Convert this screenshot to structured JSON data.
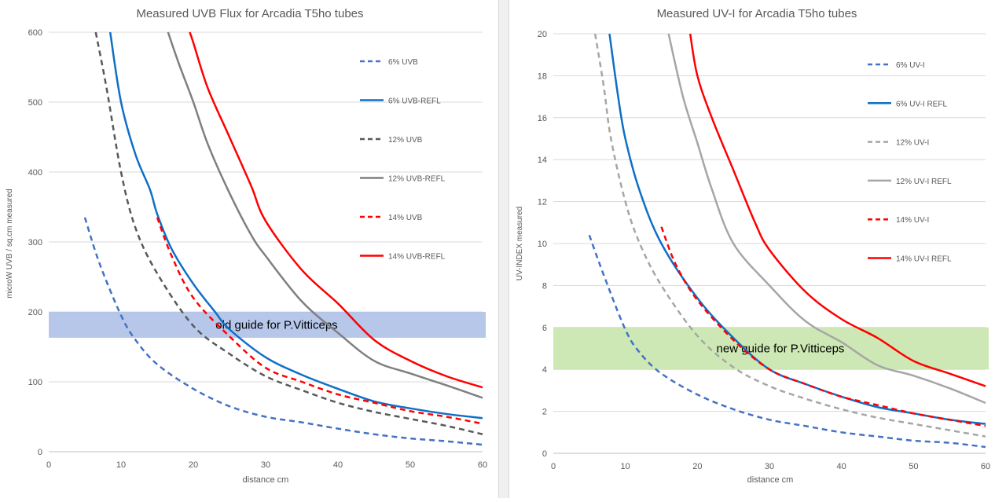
{
  "chart_data": [
    {
      "type": "line",
      "title": "Measured UVB Flux for Arcadia T5ho tubes",
      "xlabel": "distance cm",
      "ylabel": "microW UVB / sq.cm measured",
      "xlim": [
        0,
        60
      ],
      "ylim": [
        0,
        600
      ],
      "xticks": [
        0,
        10,
        20,
        30,
        40,
        50,
        60
      ],
      "yticks": [
        0,
        100,
        200,
        300,
        400,
        500,
        600
      ],
      "grid": "horizontal",
      "legend": "right",
      "band": {
        "label": "old guide for P.Vitticeps",
        "y0": 163,
        "y1": 200,
        "color": "#a9bde6"
      },
      "series": [
        {
          "name": "6% UVB",
          "color": "#4472c4",
          "dash": true,
          "points": [
            [
              5,
              335
            ],
            [
              7,
              270
            ],
            [
              10,
              195
            ],
            [
              12,
              160
            ],
            [
              15,
              125
            ],
            [
              20,
              90
            ],
            [
              25,
              65
            ],
            [
              30,
              50
            ],
            [
              35,
              42
            ],
            [
              40,
              33
            ],
            [
              45,
              25
            ],
            [
              50,
              19
            ],
            [
              55,
              15
            ],
            [
              60,
              10
            ]
          ]
        },
        {
          "name": "6% UVB-REFL",
          "color": "#0f6fc6",
          "dash": false,
          "points": [
            [
              8.5,
              600
            ],
            [
              10,
              500
            ],
            [
              12,
              425
            ],
            [
              14,
              375
            ],
            [
              15,
              340
            ],
            [
              17,
              290
            ],
            [
              20,
              240
            ],
            [
              23,
              200
            ],
            [
              25,
              175
            ],
            [
              30,
              135
            ],
            [
              35,
              110
            ],
            [
              40,
              90
            ],
            [
              45,
              72
            ],
            [
              50,
              62
            ],
            [
              55,
              54
            ],
            [
              60,
              48
            ]
          ]
        },
        {
          "name": "12% UVB",
          "color": "#595959",
          "dash": true,
          "points": [
            [
              6.5,
              600
            ],
            [
              8,
              520
            ],
            [
              10,
              400
            ],
            [
              12,
              320
            ],
            [
              15,
              255
            ],
            [
              20,
              180
            ],
            [
              25,
              140
            ],
            [
              30,
              108
            ],
            [
              35,
              88
            ],
            [
              40,
              70
            ],
            [
              45,
              57
            ],
            [
              50,
              47
            ],
            [
              55,
              37
            ],
            [
              60,
              25
            ]
          ]
        },
        {
          "name": "12% UVB-REFL",
          "color": "#7f7f7f",
          "dash": false,
          "points": [
            [
              16.5,
              600
            ],
            [
              18,
              555
            ],
            [
              20,
              500
            ],
            [
              22,
              440
            ],
            [
              25,
              370
            ],
            [
              28,
              310
            ],
            [
              30,
              280
            ],
            [
              35,
              215
            ],
            [
              40,
              170
            ],
            [
              45,
              130
            ],
            [
              50,
              112
            ],
            [
              55,
              95
            ],
            [
              60,
              77
            ]
          ]
        },
        {
          "name": "14% UVB",
          "color": "#ff0000",
          "dash": true,
          "points": [
            [
              15,
              335
            ],
            [
              17,
              280
            ],
            [
              20,
              220
            ],
            [
              25,
              165
            ],
            [
              30,
              120
            ],
            [
              35,
              100
            ],
            [
              40,
              82
            ],
            [
              45,
              70
            ],
            [
              50,
              58
            ],
            [
              55,
              50
            ],
            [
              60,
              40
            ]
          ]
        },
        {
          "name": "14% UVB-REFL",
          "color": "#ff0000",
          "dash": false,
          "points": [
            [
              19.5,
              600
            ],
            [
              20,
              585
            ],
            [
              22,
              520
            ],
            [
              25,
              450
            ],
            [
              28,
              380
            ],
            [
              30,
              330
            ],
            [
              35,
              260
            ],
            [
              40,
              212
            ],
            [
              45,
              160
            ],
            [
              50,
              130
            ],
            [
              55,
              108
            ],
            [
              60,
              92
            ]
          ]
        }
      ]
    },
    {
      "type": "line",
      "title": "Measured UV-I  for Arcadia T5ho tubes",
      "xlabel": "distance cm",
      "ylabel": "UV-INDEX  measured",
      "xlim": [
        0,
        60
      ],
      "ylim": [
        0,
        20
      ],
      "xticks": [
        0,
        10,
        20,
        30,
        40,
        50,
        60
      ],
      "yticks": [
        0,
        2,
        4,
        6,
        8,
        10,
        12,
        14,
        16,
        18,
        20
      ],
      "grid": "horizontal",
      "legend": "right",
      "band": {
        "label": "new guide for P.Vitticeps",
        "y0": 4,
        "y1": 6,
        "color": "#c6e4a8"
      },
      "series": [
        {
          "name": "6% UV-I",
          "color": "#4472c4",
          "dash": true,
          "points": [
            [
              5,
              10.4
            ],
            [
              7,
              8.5
            ],
            [
              10,
              5.9
            ],
            [
              12,
              4.8
            ],
            [
              15,
              3.8
            ],
            [
              20,
              2.8
            ],
            [
              25,
              2.1
            ],
            [
              30,
              1.6
            ],
            [
              35,
              1.3
            ],
            [
              40,
              1.0
            ],
            [
              45,
              0.8
            ],
            [
              50,
              0.6
            ],
            [
              55,
              0.5
            ],
            [
              60,
              0.3
            ]
          ]
        },
        {
          "name": "6% UV-I REFL",
          "color": "#0f6fc6",
          "dash": false,
          "points": [
            [
              7.8,
              20
            ],
            [
              9,
              17
            ],
            [
              10,
              15
            ],
            [
              12,
              12.5
            ],
            [
              15,
              10
            ],
            [
              20,
              7.4
            ],
            [
              25,
              5.5
            ],
            [
              30,
              4.0
            ],
            [
              35,
              3.3
            ],
            [
              40,
              2.7
            ],
            [
              45,
              2.2
            ],
            [
              50,
              1.9
            ],
            [
              55,
              1.6
            ],
            [
              60,
              1.4
            ]
          ]
        },
        {
          "name": "12% UV-I",
          "color": "#a6a6a6",
          "dash": true,
          "points": [
            [
              5.8,
              20
            ],
            [
              7,
              17.5
            ],
            [
              8,
              15
            ],
            [
              10,
              12
            ],
            [
              12,
              10
            ],
            [
              15,
              8.0
            ],
            [
              20,
              5.6
            ],
            [
              25,
              4.1
            ],
            [
              30,
              3.2
            ],
            [
              35,
              2.6
            ],
            [
              40,
              2.1
            ],
            [
              45,
              1.7
            ],
            [
              50,
              1.4
            ],
            [
              55,
              1.1
            ],
            [
              60,
              0.8
            ]
          ]
        },
        {
          "name": "12% UV-I REFL",
          "color": "#a6a6a6",
          "dash": false,
          "points": [
            [
              16,
              20
            ],
            [
              18,
              17
            ],
            [
              20,
              14.8
            ],
            [
              22,
              12.6
            ],
            [
              25,
              10
            ],
            [
              30,
              8.0
            ],
            [
              35,
              6.3
            ],
            [
              40,
              5.3
            ],
            [
              45,
              4.2
            ],
            [
              50,
              3.7
            ],
            [
              55,
              3.1
            ],
            [
              60,
              2.4
            ]
          ]
        },
        {
          "name": "14% UV-I",
          "color": "#ff0000",
          "dash": true,
          "points": [
            [
              15,
              10.8
            ],
            [
              17,
              9
            ],
            [
              20,
              7.3
            ],
            [
              25,
              5.4
            ],
            [
              30,
              4.0
            ],
            [
              35,
              3.3
            ],
            [
              40,
              2.7
            ],
            [
              45,
              2.3
            ],
            [
              50,
              1.9
            ],
            [
              55,
              1.6
            ],
            [
              60,
              1.3
            ]
          ]
        },
        {
          "name": "14% UV-I REFL",
          "color": "#ff0000",
          "dash": false,
          "points": [
            [
              19,
              20
            ],
            [
              20,
              18
            ],
            [
              22,
              16
            ],
            [
              25,
              13.5
            ],
            [
              28,
              11
            ],
            [
              30,
              9.7
            ],
            [
              35,
              7.7
            ],
            [
              40,
              6.4
            ],
            [
              45,
              5.5
            ],
            [
              50,
              4.4
            ],
            [
              55,
              3.8
            ],
            [
              60,
              3.2
            ]
          ]
        }
      ]
    }
  ]
}
